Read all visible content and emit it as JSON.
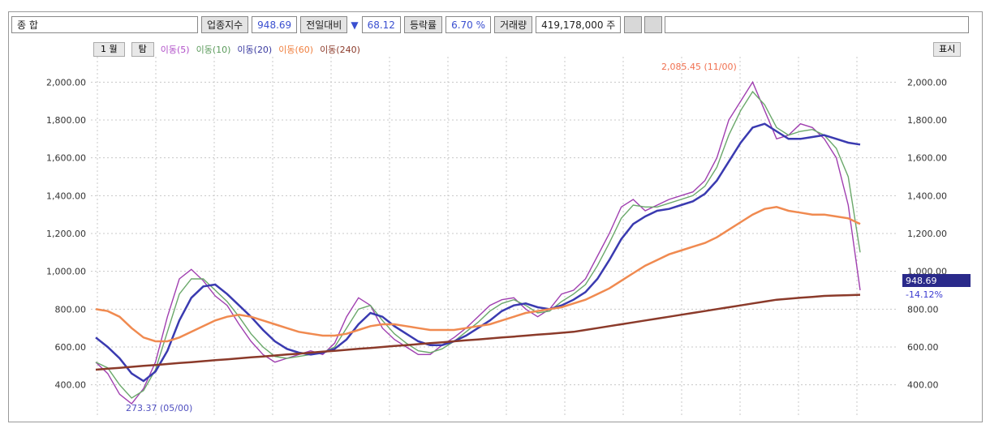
{
  "toolbar": {
    "name": "종   합",
    "index_btn": "업종지수",
    "value": "948.69",
    "change_label": "전일대비",
    "change_arrow": "▼",
    "change_value": "68.12",
    "rate_label": "등락률",
    "rate_value": "6.70 %",
    "volume_label": "거래량",
    "volume_value": "419,178,000 주",
    "right_label": "표시"
  },
  "legend": {
    "period": "1 월",
    "period_btn": "탐",
    "items": [
      {
        "label": "이동(5)",
        "color": "#b04fc8"
      },
      {
        "label": "이동(10)",
        "color": "#5a9a5a"
      },
      {
        "label": "이동(20)",
        "color": "#3a3aa0"
      },
      {
        "label": "이동(60)",
        "color": "#f08040"
      },
      {
        "label": "이동(240)",
        "color": "#8b3a2a"
      }
    ]
  },
  "chart_data": {
    "type": "line",
    "ylim": [
      270,
      2100
    ],
    "y_ticks": [
      "2,000.00",
      "1,800.00",
      "1,600.00",
      "1,400.00",
      "1,200.00",
      "1,000.00",
      "800.00",
      "600.00",
      "400.00"
    ],
    "y_ticks_right": [
      "2,000.00",
      "1,800.00",
      "1,600.00",
      "1,400.00",
      "1,200.00",
      "1,000.00",
      "800.00",
      "600.00",
      "400.00"
    ],
    "annotations": {
      "high": "2,085.45 (11/00)",
      "low": "273.37 (05/00)",
      "current": "948.69",
      "current_change": "-14.12%"
    },
    "series": [
      {
        "color": "#a03fb0",
        "values": [
          520,
          460,
          350,
          300,
          380,
          520,
          760,
          960,
          1010,
          950,
          870,
          820,
          720,
          630,
          560,
          520,
          540,
          560,
          580,
          560,
          620,
          760,
          860,
          820,
          700,
          640,
          600,
          560,
          560,
          610,
          650,
          700,
          760,
          820,
          850,
          860,
          800,
          760,
          800,
          880,
          900,
          960,
          1080,
          1200,
          1340,
          1380,
          1320,
          1350,
          1380,
          1400,
          1420,
          1480,
          1600,
          1800,
          1900,
          2000,
          1850,
          1700,
          1720,
          1780,
          1760,
          1700,
          1600,
          1350,
          900
        ]
      },
      {
        "color": "#6aa86a",
        "values": [
          520,
          490,
          400,
          330,
          370,
          480,
          680,
          880,
          960,
          960,
          900,
          840,
          760,
          670,
          600,
          550,
          540,
          550,
          560,
          570,
          600,
          700,
          800,
          820,
          740,
          670,
          620,
          580,
          570,
          590,
          630,
          680,
          730,
          790,
          830,
          850,
          820,
          780,
          790,
          840,
          880,
          930,
          1030,
          1150,
          1280,
          1350,
          1340,
          1340,
          1360,
          1380,
          1400,
          1450,
          1550,
          1720,
          1850,
          1950,
          1880,
          1760,
          1720,
          1740,
          1750,
          1720,
          1650,
          1500,
          1100
        ]
      },
      {
        "color": "#3a3ab0",
        "values": [
          650,
          600,
          540,
          460,
          420,
          470,
          580,
          740,
          860,
          920,
          930,
          880,
          820,
          760,
          690,
          630,
          590,
          570,
          560,
          570,
          590,
          640,
          720,
          780,
          760,
          710,
          670,
          630,
          610,
          610,
          630,
          660,
          700,
          740,
          790,
          820,
          830,
          810,
          800,
          820,
          850,
          890,
          960,
          1060,
          1170,
          1250,
          1290,
          1320,
          1330,
          1350,
          1370,
          1410,
          1480,
          1580,
          1680,
          1760,
          1780,
          1740,
          1700,
          1700,
          1710,
          1720,
          1700,
          1680,
          1670
        ]
      },
      {
        "color": "#f08a50",
        "values": [
          800,
          790,
          760,
          700,
          650,
          630,
          630,
          650,
          680,
          710,
          740,
          760,
          770,
          760,
          740,
          720,
          700,
          680,
          670,
          660,
          660,
          670,
          690,
          710,
          720,
          720,
          710,
          700,
          690,
          690,
          690,
          700,
          710,
          720,
          740,
          760,
          780,
          790,
          800,
          810,
          830,
          850,
          880,
          910,
          950,
          990,
          1030,
          1060,
          1090,
          1110,
          1130,
          1150,
          1180,
          1220,
          1260,
          1300,
          1330,
          1340,
          1320,
          1310,
          1300,
          1300,
          1290,
          1280,
          1250
        ]
      },
      {
        "color": "#8b3a2a",
        "values": [
          480,
          485,
          490,
          495,
          500,
          505,
          510,
          515,
          520,
          525,
          530,
          535,
          540,
          545,
          550,
          555,
          560,
          565,
          570,
          575,
          580,
          585,
          590,
          595,
          600,
          605,
          610,
          615,
          620,
          625,
          630,
          635,
          640,
          645,
          650,
          655,
          660,
          665,
          670,
          675,
          680,
          690,
          700,
          710,
          720,
          730,
          740,
          750,
          760,
          770,
          780,
          790,
          800,
          810,
          820,
          830,
          840,
          850,
          855,
          860,
          865,
          870,
          872,
          874,
          876
        ]
      }
    ]
  }
}
